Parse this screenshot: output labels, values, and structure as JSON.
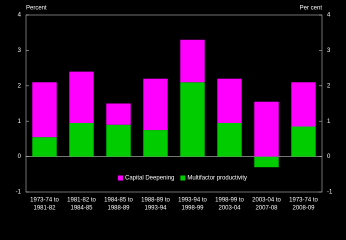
{
  "chart_data": {
    "type": "stacked_bar",
    "y_label_left": "Percent",
    "y_label_right": "Per cent",
    "categories": [
      [
        "1973-74 to",
        "1981-82"
      ],
      [
        "1981-82 to",
        "1984-85"
      ],
      [
        "1984-85 to",
        "1988-89"
      ],
      [
        "1988-89 to",
        "1993-94"
      ],
      [
        "1993-94 to",
        "1998-99"
      ],
      [
        "1998-99 to",
        "2003-04"
      ],
      [
        "2003-04 to",
        "2007-08"
      ],
      [
        "1973-74 to",
        "2008-09"
      ]
    ],
    "series": [
      {
        "name": "Capital Deepening",
        "color": "#ff00ff",
        "values": [
          1.55,
          1.45,
          0.6,
          1.45,
          1.2,
          1.25,
          1.55,
          1.25
        ]
      },
      {
        "name": "Multifactor productivity",
        "color": "#00cc00",
        "values": [
          0.55,
          0.95,
          0.9,
          0.75,
          2.1,
          0.95,
          -0.3,
          0.85
        ]
      }
    ],
    "ylim": [
      -1,
      4
    ],
    "yticks": [
      -1,
      0,
      1,
      2,
      3,
      4
    ],
    "y2lim": [
      -1,
      4
    ],
    "y2ticks": [
      -1,
      0,
      1,
      2,
      3,
      4
    ],
    "legend": "bottom"
  }
}
